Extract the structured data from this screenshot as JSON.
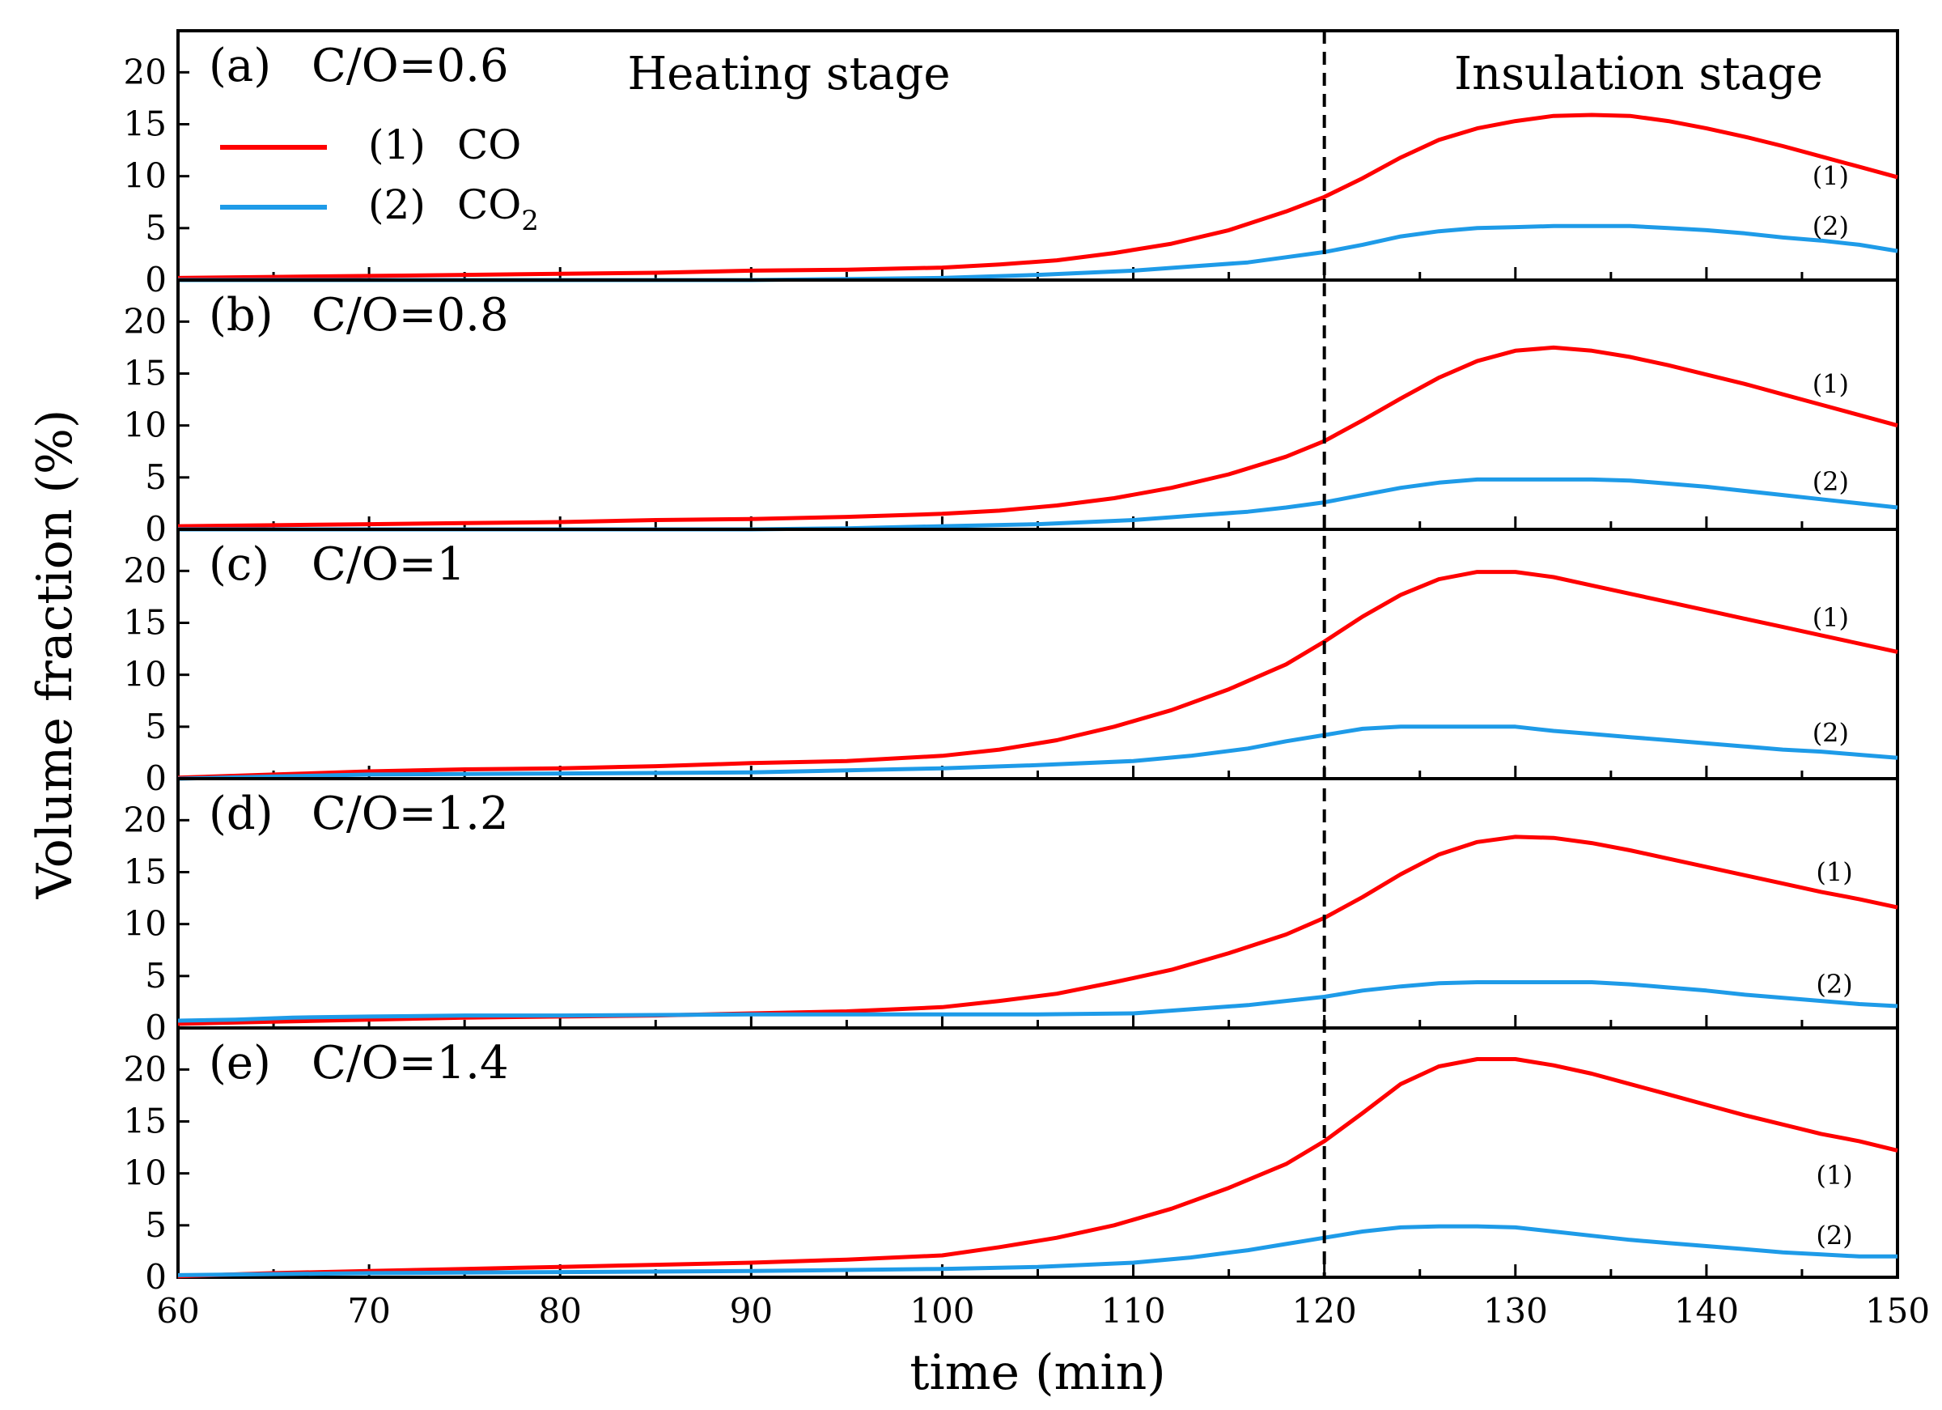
{
  "chart_data": {
    "type": "line",
    "xlabel": "time (min)",
    "ylabel": "Volume fraction (%)",
    "xlim": [
      60,
      150
    ],
    "ylim": [
      0,
      24
    ],
    "xticks": [
      "60",
      "70",
      "80",
      "90",
      "100",
      "110",
      "120",
      "130",
      "140",
      "150"
    ],
    "yticks": [
      "0",
      "5",
      "10",
      "15",
      "20"
    ],
    "divider_x": 120,
    "stage_labels": {
      "heating": "Heating stage",
      "insulation": "Insulation stage"
    },
    "legend": [
      {
        "marker": "(1)",
        "name": "CO",
        "color": "#ff0000"
      },
      {
        "marker": "(2)",
        "name": "CO",
        "sub": "2",
        "color": "#1e9be8"
      }
    ],
    "panels": [
      {
        "id": "a",
        "letter": "(a)",
        "label": "C/O=0.6",
        "curve_labels": [
          {
            "text": "(1)",
            "x": 146.5,
            "y": 10
          },
          {
            "text": "(2)",
            "x": 146.5,
            "y": 5.2
          }
        ],
        "series": [
          {
            "name": "CO",
            "color": "#ff0000",
            "x": [
              60,
              65,
              70,
              75,
              80,
              85,
              90,
              95,
              100,
              103,
              106,
              109,
              112,
              115,
              118,
              120,
              122,
              124,
              126,
              128,
              130,
              132,
              134,
              136,
              138,
              140,
              142,
              144,
              146,
              148,
              150
            ],
            "y": [
              0.2,
              0.3,
              0.4,
              0.5,
              0.6,
              0.7,
              0.9,
              1.0,
              1.2,
              1.5,
              1.9,
              2.6,
              3.5,
              4.8,
              6.6,
              8.0,
              9.8,
              11.8,
              13.5,
              14.6,
              15.3,
              15.8,
              15.9,
              15.8,
              15.3,
              14.6,
              13.8,
              12.9,
              11.9,
              10.9,
              9.9
            ]
          },
          {
            "name": "CO2",
            "color": "#1e9be8",
            "x": [
              60,
              70,
              80,
              90,
              95,
              100,
              105,
              110,
              113,
              116,
              118,
              120,
              122,
              124,
              126,
              128,
              130,
              132,
              134,
              136,
              138,
              140,
              142,
              144,
              146,
              148,
              150
            ],
            "y": [
              0.0,
              0.0,
              0.0,
              0.0,
              0.1,
              0.2,
              0.5,
              0.9,
              1.3,
              1.7,
              2.2,
              2.7,
              3.4,
              4.2,
              4.7,
              5.0,
              5.1,
              5.2,
              5.2,
              5.2,
              5.0,
              4.8,
              4.5,
              4.1,
              3.8,
              3.4,
              2.8
            ]
          }
        ]
      },
      {
        "id": "b",
        "letter": "(b)",
        "label": "C/O=0.8",
        "curve_labels": [
          {
            "text": "(1)",
            "x": 146.5,
            "y": 14
          },
          {
            "text": "(2)",
            "x": 146.5,
            "y": 4.6
          }
        ],
        "series": [
          {
            "name": "CO",
            "color": "#ff0000",
            "x": [
              60,
              65,
              70,
              75,
              80,
              85,
              90,
              95,
              100,
              103,
              106,
              109,
              112,
              115,
              118,
              120,
              122,
              124,
              126,
              128,
              130,
              132,
              134,
              136,
              138,
              140,
              142,
              144,
              146,
              148,
              150
            ],
            "y": [
              0.3,
              0.4,
              0.5,
              0.6,
              0.7,
              0.9,
              1.0,
              1.2,
              1.5,
              1.8,
              2.3,
              3.0,
              4.0,
              5.3,
              7.0,
              8.5,
              10.5,
              12.6,
              14.6,
              16.2,
              17.2,
              17.5,
              17.2,
              16.6,
              15.8,
              14.9,
              14.0,
              13.0,
              12.0,
              11.0,
              10.0
            ]
          },
          {
            "name": "CO2",
            "color": "#1e9be8",
            "x": [
              60,
              70,
              80,
              90,
              95,
              100,
              105,
              110,
              113,
              116,
              118,
              120,
              122,
              124,
              126,
              128,
              130,
              132,
              134,
              136,
              138,
              140,
              142,
              144,
              146,
              148,
              150
            ],
            "y": [
              0.0,
              0.0,
              0.0,
              0.0,
              0.1,
              0.3,
              0.5,
              0.9,
              1.3,
              1.7,
              2.1,
              2.6,
              3.3,
              4.0,
              4.5,
              4.8,
              4.8,
              4.8,
              4.8,
              4.7,
              4.4,
              4.1,
              3.7,
              3.3,
              2.9,
              2.5,
              2.1
            ]
          }
        ]
      },
      {
        "id": "c",
        "letter": "(c)",
        "label": "C/O=1",
        "curve_labels": [
          {
            "text": "(1)",
            "x": 146.5,
            "y": 15.5
          },
          {
            "text": "(2)",
            "x": 146.5,
            "y": 4.4
          }
        ],
        "series": [
          {
            "name": "CO",
            "color": "#ff0000",
            "x": [
              60,
              65,
              70,
              75,
              80,
              85,
              90,
              95,
              100,
              103,
              106,
              109,
              112,
              115,
              118,
              120,
              122,
              124,
              126,
              128,
              130,
              132,
              134,
              136,
              138,
              140,
              142,
              144,
              146,
              148,
              150
            ],
            "y": [
              0.1,
              0.4,
              0.7,
              0.9,
              1.0,
              1.2,
              1.5,
              1.7,
              2.2,
              2.8,
              3.7,
              5.0,
              6.6,
              8.6,
              11.0,
              13.2,
              15.6,
              17.7,
              19.2,
              19.9,
              19.9,
              19.4,
              18.6,
              17.8,
              17.0,
              16.2,
              15.4,
              14.6,
              13.8,
              13.0,
              12.2
            ]
          },
          {
            "name": "CO2",
            "color": "#1e9be8",
            "x": [
              60,
              65,
              70,
              80,
              90,
              95,
              100,
              105,
              110,
              113,
              116,
              118,
              120,
              122,
              124,
              126,
              128,
              130,
              132,
              134,
              136,
              138,
              140,
              142,
              144,
              146,
              148,
              150
            ],
            "y": [
              0.0,
              0.2,
              0.4,
              0.5,
              0.6,
              0.8,
              1.0,
              1.3,
              1.7,
              2.2,
              2.9,
              3.6,
              4.2,
              4.8,
              5.0,
              5.0,
              5.0,
              5.0,
              4.6,
              4.3,
              4.0,
              3.7,
              3.4,
              3.1,
              2.8,
              2.6,
              2.3,
              2.0
            ]
          }
        ]
      },
      {
        "id": "d",
        "letter": "(d)",
        "label": "C/O=1.2",
        "curve_labels": [
          {
            "text": "(1)",
            "x": 146.7,
            "y": 15
          },
          {
            "text": "(2)",
            "x": 146.7,
            "y": 4.2
          }
        ],
        "series": [
          {
            "name": "CO",
            "color": "#ff0000",
            "x": [
              60,
              65,
              70,
              75,
              80,
              85,
              90,
              95,
              100,
              103,
              106,
              109,
              112,
              115,
              118,
              120,
              122,
              124,
              126,
              128,
              130,
              132,
              134,
              136,
              138,
              140,
              142,
              144,
              146,
              148,
              150
            ],
            "y": [
              0.4,
              0.6,
              0.8,
              1.0,
              1.1,
              1.2,
              1.4,
              1.6,
              2.0,
              2.6,
              3.3,
              4.4,
              5.6,
              7.2,
              9.0,
              10.6,
              12.6,
              14.8,
              16.7,
              17.9,
              18.4,
              18.3,
              17.8,
              17.1,
              16.3,
              15.5,
              14.7,
              13.9,
              13.1,
              12.4,
              11.6
            ]
          },
          {
            "name": "CO2",
            "color": "#1e9be8",
            "x": [
              60,
              63,
              66,
              70,
              75,
              80,
              90,
              100,
              105,
              110,
              113,
              116,
              118,
              120,
              122,
              124,
              126,
              128,
              130,
              132,
              134,
              136,
              138,
              140,
              142,
              144,
              146,
              148,
              150
            ],
            "y": [
              0.7,
              0.8,
              1.0,
              1.1,
              1.2,
              1.2,
              1.3,
              1.3,
              1.3,
              1.4,
              1.8,
              2.2,
              2.6,
              3.0,
              3.6,
              4.0,
              4.3,
              4.4,
              4.4,
              4.4,
              4.4,
              4.2,
              3.9,
              3.6,
              3.2,
              2.9,
              2.6,
              2.3,
              2.1
            ]
          }
        ]
      },
      {
        "id": "e",
        "letter": "(e)",
        "label": "C/O=1.4",
        "curve_labels": [
          {
            "text": "(1)",
            "x": 146.7,
            "y": 9.8
          },
          {
            "text": "(2)",
            "x": 146.7,
            "y": 4.0
          }
        ],
        "series": [
          {
            "name": "CO",
            "color": "#ff0000",
            "x": [
              60,
              65,
              70,
              75,
              80,
              85,
              90,
              95,
              100,
              103,
              106,
              109,
              112,
              115,
              118,
              120,
              122,
              124,
              126,
              128,
              130,
              132,
              134,
              136,
              138,
              140,
              142,
              144,
              146,
              148,
              150
            ],
            "y": [
              0.1,
              0.4,
              0.6,
              0.8,
              1.0,
              1.2,
              1.4,
              1.7,
              2.1,
              2.9,
              3.8,
              5.0,
              6.6,
              8.6,
              10.9,
              13.1,
              15.8,
              18.6,
              20.3,
              21.0,
              21.0,
              20.4,
              19.6,
              18.6,
              17.6,
              16.6,
              15.6,
              14.7,
              13.8,
              13.1,
              12.2
            ]
          },
          {
            "name": "CO2",
            "color": "#1e9be8",
            "x": [
              60,
              70,
              80,
              90,
              100,
              105,
              110,
              113,
              116,
              118,
              120,
              122,
              124,
              126,
              128,
              130,
              132,
              134,
              136,
              138,
              140,
              142,
              144,
              146,
              148,
              150
            ],
            "y": [
              0.2,
              0.4,
              0.5,
              0.6,
              0.8,
              1.0,
              1.4,
              1.9,
              2.6,
              3.2,
              3.8,
              4.4,
              4.8,
              4.9,
              4.9,
              4.8,
              4.4,
              4.0,
              3.6,
              3.3,
              3.0,
              2.7,
              2.4,
              2.2,
              2.0,
              2.0
            ]
          }
        ]
      }
    ]
  }
}
